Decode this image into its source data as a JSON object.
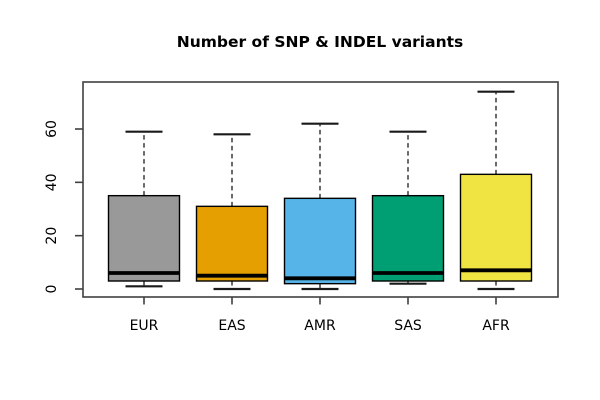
{
  "chart_data": {
    "type": "boxplot",
    "title": "Number of SNP & INDEL variants",
    "xlabel": "",
    "ylabel": "",
    "categories": [
      "EUR",
      "EAS",
      "AMR",
      "SAS",
      "AFR"
    ],
    "y_axis": {
      "ticks": [
        0,
        20,
        40,
        60
      ],
      "tick_labels": [
        "0",
        "20",
        "40",
        "60"
      ],
      "ylim": [
        0,
        75
      ]
    },
    "grid": "off",
    "legend": "none",
    "boxes": [
      {
        "label": "EUR",
        "color": "#999999",
        "whisker_low": 1,
        "q1": 3,
        "median": 6,
        "q3": 35,
        "whisker_high": 59
      },
      {
        "label": "EAS",
        "color": "#E69F00",
        "whisker_low": 0,
        "q1": 3,
        "median": 5,
        "q3": 31,
        "whisker_high": 58
      },
      {
        "label": "AMR",
        "color": "#56B4E9",
        "whisker_low": 0,
        "q1": 2,
        "median": 4,
        "q3": 34,
        "whisker_high": 62
      },
      {
        "label": "SAS",
        "color": "#009E73",
        "whisker_low": 2,
        "q1": 3,
        "median": 6,
        "q3": 35,
        "whisker_high": 59
      },
      {
        "label": "AFR",
        "color": "#F0E442",
        "whisker_low": 0,
        "q1": 3,
        "median": 7,
        "q3": 43,
        "whisker_high": 74
      }
    ],
    "style_colors": {
      "box_border": "#000000",
      "median_line": "#000000",
      "frame": "#404040",
      "background": "#ffffff"
    }
  }
}
